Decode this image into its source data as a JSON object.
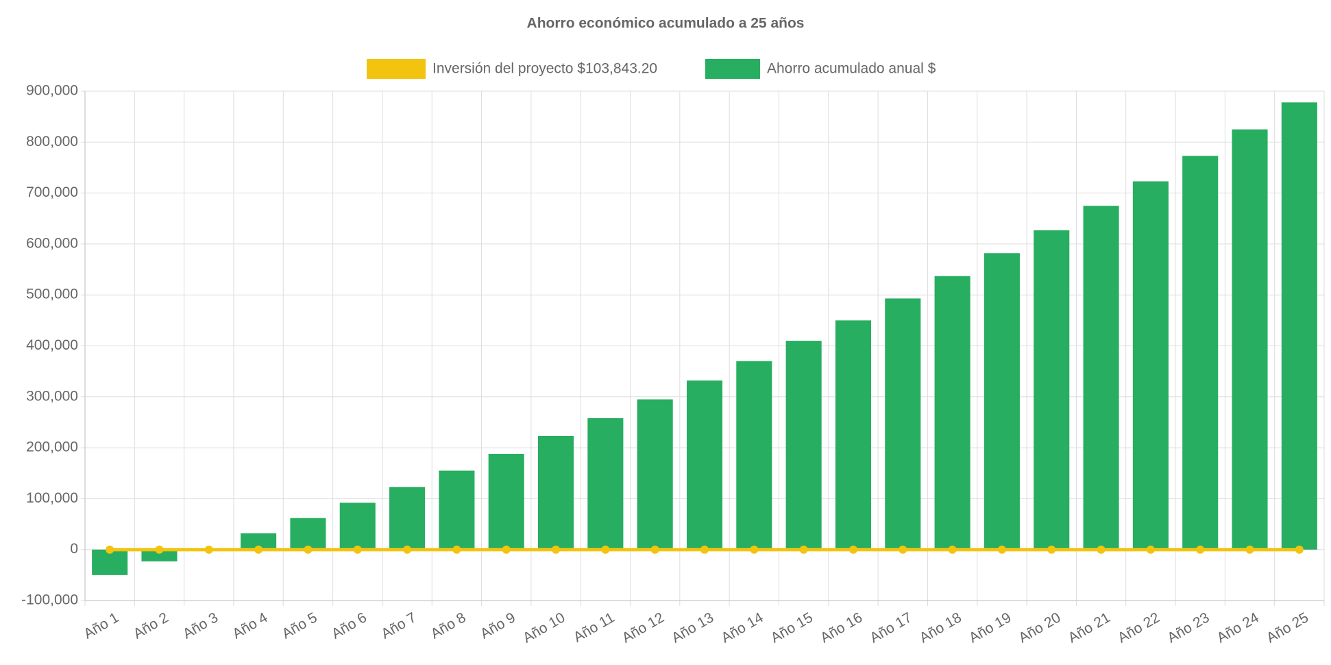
{
  "chart_data": {
    "type": "bar",
    "title": "Ahorro económico acumulado a 25 años",
    "categories": [
      "Año 1",
      "Año 2",
      "Año 3",
      "Año 4",
      "Año 5",
      "Año 6",
      "Año 7",
      "Año 8",
      "Año 9",
      "Año 10",
      "Año 11",
      "Año 12",
      "Año 13",
      "Año 14",
      "Año 15",
      "Año 16",
      "Año 17",
      "Año 18",
      "Año 19",
      "Año 20",
      "Año 21",
      "Año 22",
      "Año 23",
      "Año 24",
      "Año 25"
    ],
    "series": [
      {
        "name": "Inversión del proyecto $103,843.20",
        "type": "line",
        "color": "#f2c40f",
        "values": [
          0,
          0,
          0,
          0,
          0,
          0,
          0,
          0,
          0,
          0,
          0,
          0,
          0,
          0,
          0,
          0,
          0,
          0,
          0,
          0,
          0,
          0,
          0,
          0,
          0
        ]
      },
      {
        "name": "Ahorro acumulado anual $",
        "type": "bar",
        "color": "#27ae60",
        "values": [
          -50000,
          -23000,
          3000,
          32000,
          62000,
          92000,
          123000,
          155000,
          188000,
          223000,
          258000,
          295000,
          332000,
          370000,
          410000,
          450000,
          493000,
          537000,
          582000,
          627000,
          675000,
          723000,
          773000,
          825000,
          878000
        ]
      }
    ],
    "ylim": [
      -100000,
      900000
    ],
    "yticks": [
      {
        "value": -100000,
        "label": "-100,000"
      },
      0,
      {
        "value": 100000,
        "label": "100,000"
      },
      {
        "value": 200000,
        "label": "200,000"
      },
      {
        "value": 300000,
        "label": "300,000"
      },
      {
        "value": 400000,
        "label": "400,000"
      },
      {
        "value": 500000,
        "label": "500,000"
      },
      {
        "value": 600000,
        "label": "600,000"
      },
      {
        "value": 700000,
        "label": "700,000"
      },
      {
        "value": 800000,
        "label": "800,000"
      },
      {
        "value": 900000,
        "label": "900,000"
      }
    ],
    "grid": true
  }
}
